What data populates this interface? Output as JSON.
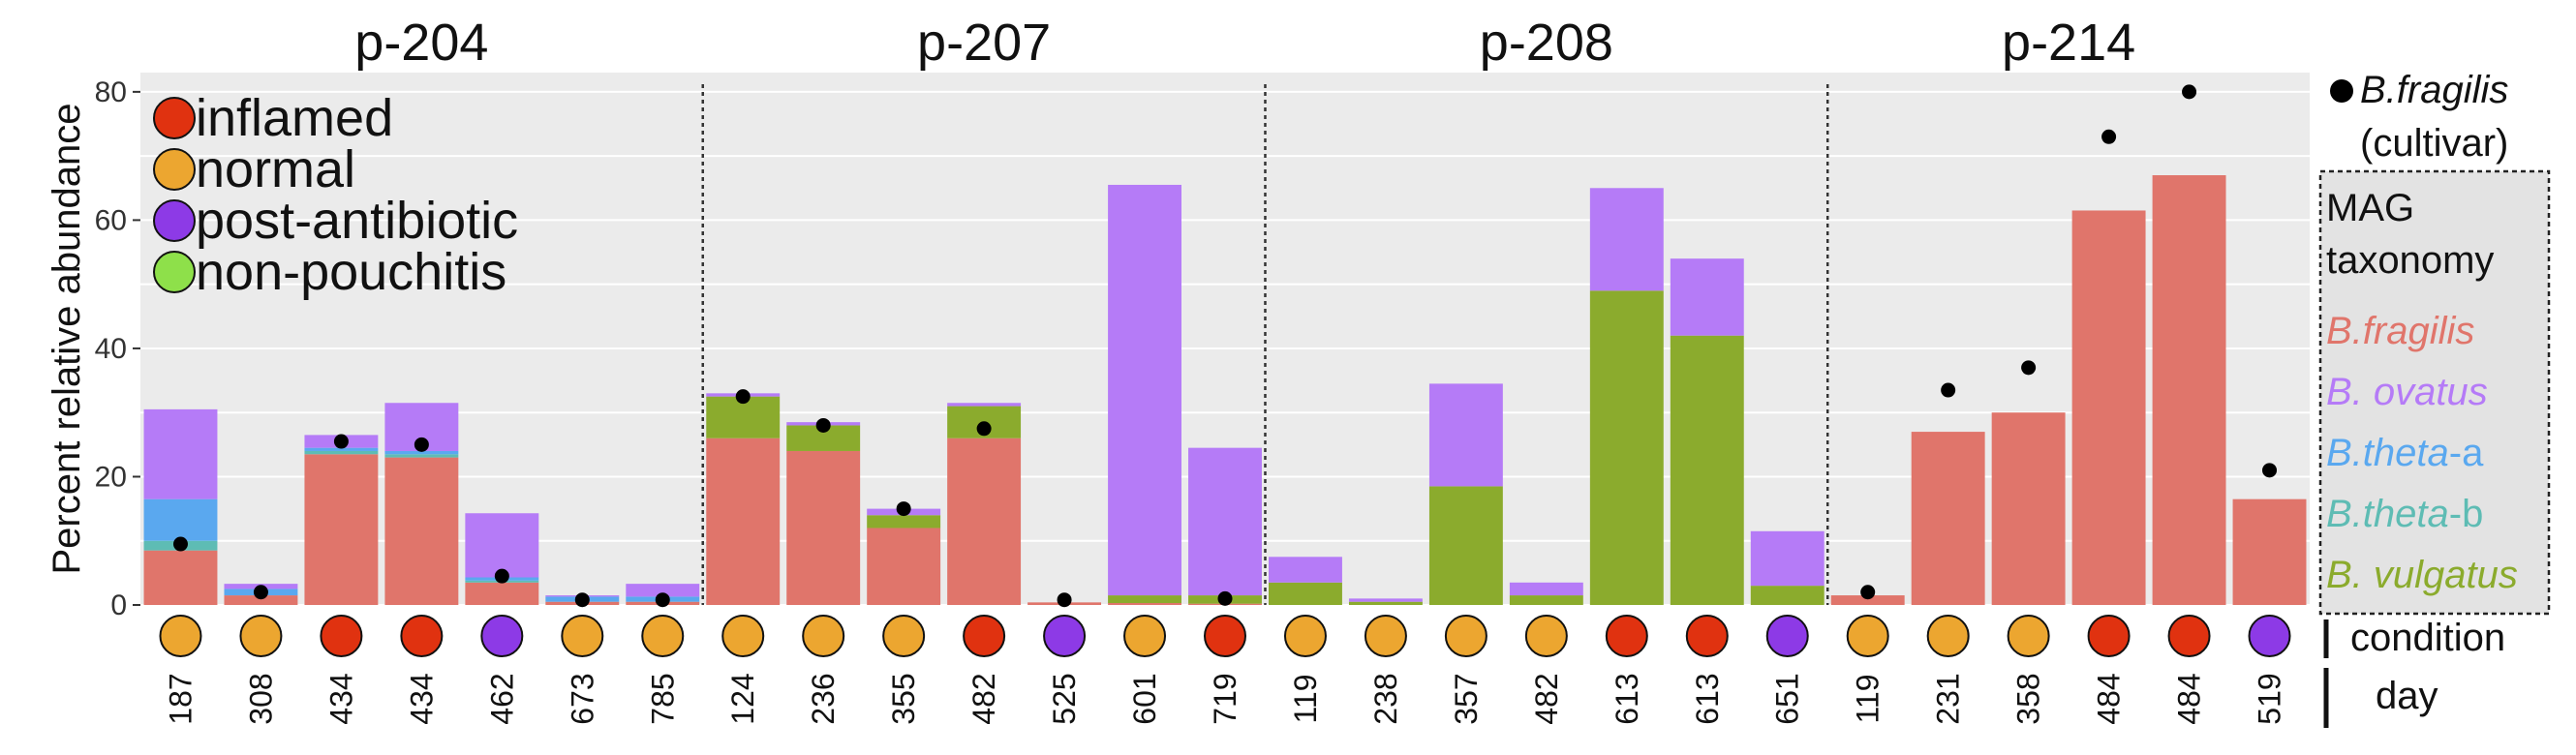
{
  "chart_data": {
    "type": "bar",
    "stacked": true,
    "ylabel": "Percent relative abundance",
    "ylim": [
      0,
      83
    ],
    "yticks": [
      0,
      20,
      40,
      60,
      80
    ],
    "grid": true,
    "panels": [
      {
        "title": "p-204",
        "days": [
          "187",
          "308",
          "434",
          "434",
          "462",
          "673",
          "785"
        ],
        "conditions": [
          "normal",
          "normal",
          "inflamed",
          "inflamed",
          "post-antibiotic",
          "normal",
          "normal"
        ],
        "fragilis": [
          8.5,
          1.5,
          23.5,
          23,
          3.5,
          0.5,
          0.5
        ],
        "vulgatus": [
          0,
          0,
          0,
          0,
          0,
          0,
          0
        ],
        "theta_b": [
          1.5,
          0,
          0.5,
          0.5,
          0.3,
          0,
          0
        ],
        "theta_a": [
          6.5,
          1,
          0.5,
          0.5,
          0.5,
          0.8,
          0.8
        ],
        "ovatus": [
          14,
          0.8,
          2,
          7.5,
          10,
          0.2,
          2
        ],
        "cultivar": [
          9.5,
          2,
          25.5,
          25,
          4.5,
          0.8,
          0.8
        ]
      },
      {
        "title": "p-207",
        "days": [
          "124",
          "236",
          "355",
          "482",
          "525",
          "601",
          "719"
        ],
        "conditions": [
          "normal",
          "normal",
          "normal",
          "inflamed",
          "post-antibiotic",
          "normal",
          "inflamed"
        ],
        "fragilis": [
          26,
          24,
          12,
          26,
          0.4,
          0.3,
          0.2
        ],
        "vulgatus": [
          6.5,
          4,
          2,
          5,
          0,
          1.2,
          1.3
        ],
        "theta_b": [
          0,
          0,
          0,
          0,
          0,
          0,
          0
        ],
        "theta_a": [
          0,
          0,
          0,
          0,
          0,
          0,
          0
        ],
        "ovatus": [
          0.5,
          0.5,
          1,
          0.5,
          0,
          64,
          23
        ],
        "cultivar": [
          32.5,
          28,
          15,
          27.5,
          0.8,
          null,
          1
        ]
      },
      {
        "title": "p-208",
        "days": [
          "119",
          "238",
          "357",
          "482",
          "613",
          "613",
          "651"
        ],
        "conditions": [
          "normal",
          "normal",
          "normal",
          "normal",
          "inflamed",
          "inflamed",
          "post-antibiotic"
        ],
        "fragilis": [
          0,
          0,
          0,
          0,
          0,
          0,
          0
        ],
        "vulgatus": [
          3.5,
          0.5,
          18.5,
          1.5,
          49,
          42,
          3
        ],
        "theta_b": [
          0,
          0,
          0,
          0,
          0,
          0,
          0
        ],
        "theta_a": [
          0,
          0,
          0,
          0,
          0,
          0,
          0
        ],
        "ovatus": [
          4,
          0.5,
          16,
          2,
          16,
          12,
          8.5
        ],
        "cultivar": [
          null,
          null,
          null,
          null,
          null,
          null,
          null
        ]
      },
      {
        "title": "p-214",
        "days": [
          "119",
          "231",
          "358",
          "484",
          "484",
          "519"
        ],
        "conditions": [
          "normal",
          "normal",
          "normal",
          "inflamed",
          "inflamed",
          "post-antibiotic"
        ],
        "fragilis": [
          1.5,
          27,
          30,
          61.5,
          67,
          16.5
        ],
        "vulgatus": [
          0,
          0,
          0,
          0,
          0,
          0
        ],
        "theta_b": [
          0,
          0,
          0,
          0,
          0,
          0
        ],
        "theta_a": [
          0,
          0,
          0,
          0,
          0,
          0
        ],
        "ovatus": [
          0,
          0,
          0,
          0,
          0,
          0
        ],
        "cultivar": [
          2,
          33.5,
          37,
          73,
          80,
          21
        ]
      }
    ],
    "series": [
      {
        "key": "fragilis",
        "name": "B.fragilis",
        "color": "#e0756b"
      },
      {
        "key": "vulgatus",
        "name": "B. vulgatus",
        "color": "#8bab2d"
      },
      {
        "key": "theta_b",
        "name": "B.theta-b",
        "color": "#5ebcb4"
      },
      {
        "key": "theta_a",
        "name": "B.theta-a",
        "color": "#5aa8ef"
      },
      {
        "key": "ovatus",
        "name": "B. ovatus",
        "color": "#b57bf7"
      }
    ],
    "condition_colors": {
      "inflamed": "#e03210",
      "normal": "#eca630",
      "post-antibiotic": "#8d3ae6",
      "non-pouchitis": "#8ee04a"
    },
    "condition_legend": [
      "inflamed",
      "normal",
      "post-antibiotic",
      "non-pouchitis"
    ],
    "cultivar_label": [
      "B.fragilis",
      "(cultivar)"
    ],
    "mag_taxonomy_title": [
      "MAG",
      "taxonomy"
    ],
    "taxonomy_legend": [
      {
        "italic": "B.fragilis",
        "suffix": "",
        "color": "#e0756b"
      },
      {
        "italic": "B. ovatus",
        "suffix": "",
        "color": "#b57bf7"
      },
      {
        "italic": "B.theta",
        "suffix": "-a",
        "color": "#5aa8ef"
      },
      {
        "italic": "B.theta",
        "suffix": "-b",
        "color": "#5ebcb4"
      },
      {
        "italic": "B. vulgatus",
        "suffix": "",
        "color": "#8bab2d"
      }
    ],
    "row_labels": {
      "condition": "condition",
      "day": "day"
    }
  }
}
